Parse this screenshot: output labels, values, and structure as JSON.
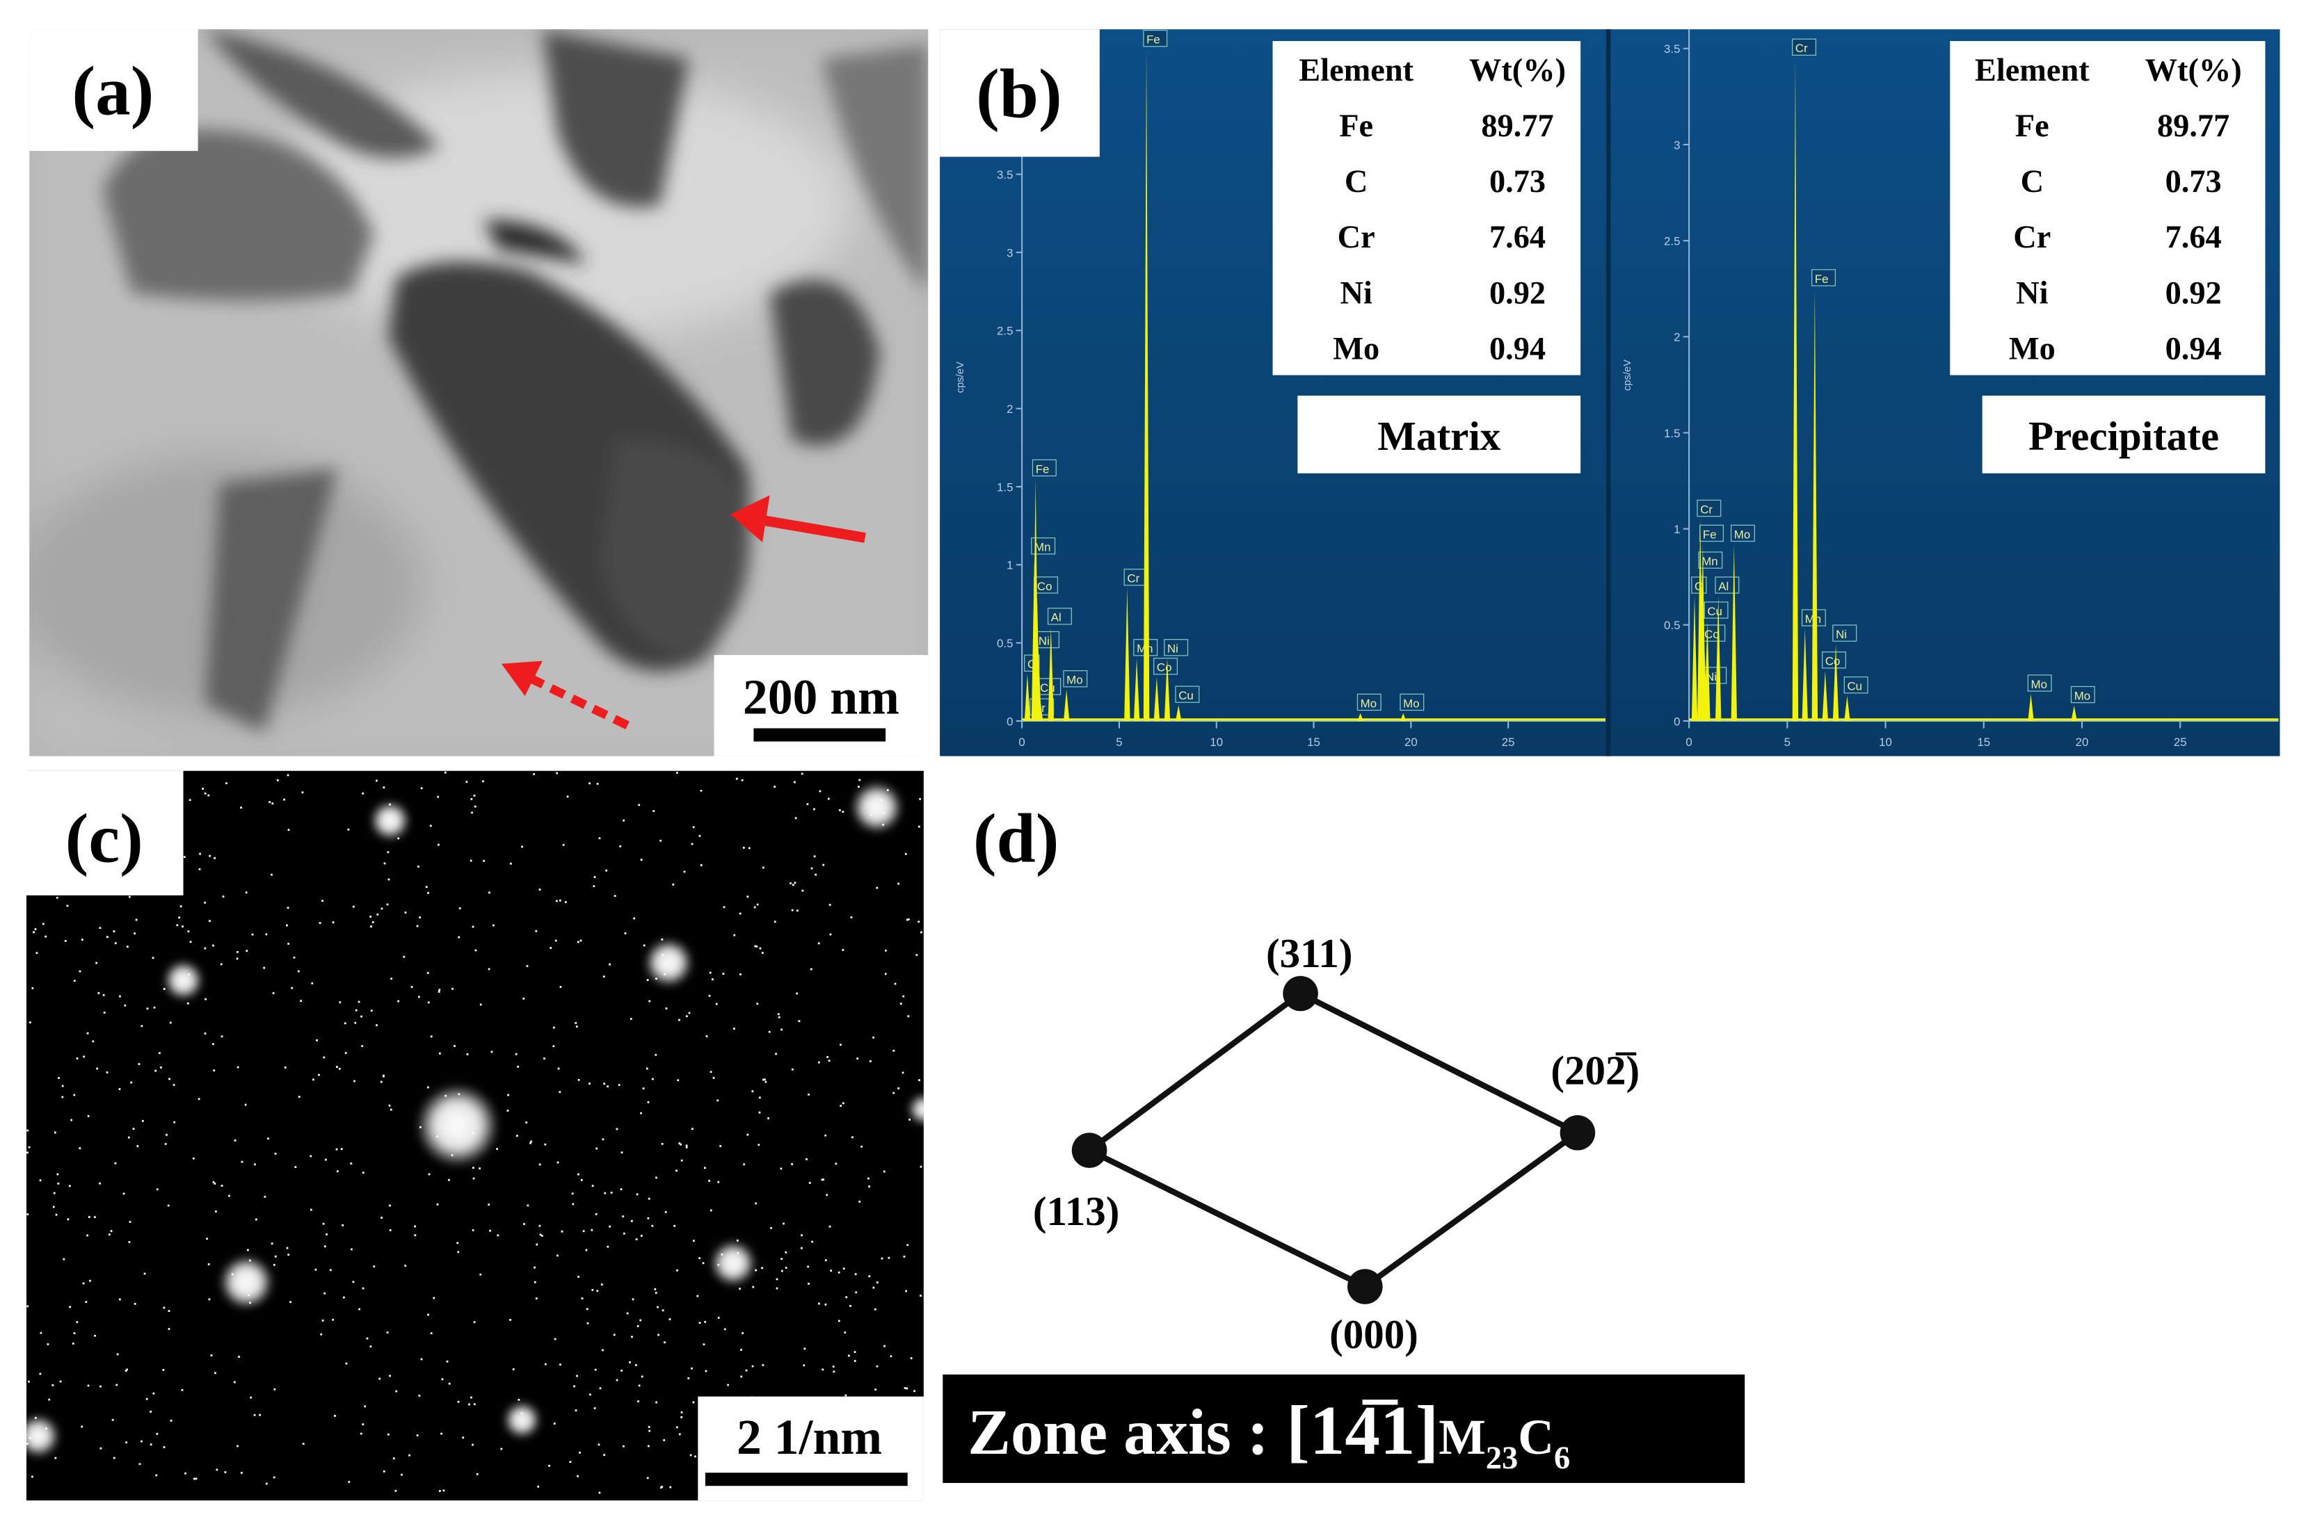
{
  "panels": {
    "a": {
      "label": "(a)",
      "scale_bar": "200 nm"
    },
    "b": {
      "label": "(b)",
      "spectra": [
        {
          "type": "spectrum",
          "name": "Matrix",
          "y_label": "cps/eV",
          "color": "#f2f20a",
          "xlim": [
            0,
            30
          ],
          "ylim": [
            0,
            4.4
          ],
          "xticks": [
            0,
            5,
            10,
            15,
            20,
            25
          ],
          "yticks": [
            0,
            0.5,
            1,
            1.5,
            2,
            2.5,
            3,
            3.5
          ],
          "peaks": [
            {
              "label": "Cr",
              "x": 0.57,
              "y": 0.02
            },
            {
              "label": "C",
              "x": 0.28,
              "y": 0.3
            },
            {
              "label": "Cu",
              "x": 0.93,
              "y": 0.15
            },
            {
              "label": "Ni",
              "x": 0.85,
              "y": 0.45
            },
            {
              "label": "Al",
              "x": 1.49,
              "y": 0.6
            },
            {
              "label": "Co",
              "x": 0.78,
              "y": 0.8
            },
            {
              "label": "Mn",
              "x": 0.64,
              "y": 1.05
            },
            {
              "label": "Fe",
              "x": 0.7,
              "y": 1.55
            },
            {
              "label": "Mo",
              "x": 2.29,
              "y": 0.2
            },
            {
              "label": "Cr",
              "x": 5.41,
              "y": 0.85
            },
            {
              "label": "Mn",
              "x": 5.9,
              "y": 0.4
            },
            {
              "label": "Fe",
              "x": 6.4,
              "y": 4.3
            },
            {
              "label": "Co",
              "x": 6.93,
              "y": 0.28
            },
            {
              "label": "Ni",
              "x": 7.47,
              "y": 0.4
            },
            {
              "label": "Cu",
              "x": 8.05,
              "y": 0.1
            },
            {
              "label": "Mo",
              "x": 17.4,
              "y": 0.05
            },
            {
              "label": "Mo",
              "x": 19.6,
              "y": 0.05
            }
          ],
          "table": {
            "header": [
              "Element",
              "Wt(%)"
            ],
            "rows": [
              [
                "Fe",
                "89.77"
              ],
              [
                "C",
                "0.73"
              ],
              [
                "Cr",
                "7.64"
              ],
              [
                "Ni",
                "0.92"
              ],
              [
                "Mo",
                "0.94"
              ]
            ]
          }
        },
        {
          "type": "spectrum",
          "name": "Precipitate",
          "y_label": "cps/eV",
          "color": "#f2f20a",
          "xlim": [
            0,
            30
          ],
          "ylim": [
            0,
            3.6
          ],
          "xticks": [
            0,
            5,
            10,
            15,
            20,
            25
          ],
          "yticks": [
            0,
            0.5,
            1,
            1.5,
            2,
            2.5,
            3,
            3.5
          ],
          "peaks": [
            {
              "label": "Ni",
              "x": 0.85,
              "y": 0.18
            },
            {
              "label": "Co",
              "x": 0.78,
              "y": 0.4
            },
            {
              "label": "Cu",
              "x": 0.93,
              "y": 0.52
            },
            {
              "label": "C",
              "x": 0.28,
              "y": 0.65
            },
            {
              "label": "Al",
              "x": 1.49,
              "y": 0.65
            },
            {
              "label": "Mn",
              "x": 0.64,
              "y": 0.78
            },
            {
              "label": "Fe",
              "x": 0.7,
              "y": 0.92
            },
            {
              "label": "Mo",
              "x": 2.29,
              "y": 0.92
            },
            {
              "label": "Cr",
              "x": 0.57,
              "y": 1.05
            },
            {
              "label": "Cr",
              "x": 5.41,
              "y": 3.45
            },
            {
              "label": "Mn",
              "x": 5.9,
              "y": 0.48
            },
            {
              "label": "Fe",
              "x": 6.4,
              "y": 2.25
            },
            {
              "label": "Co",
              "x": 6.93,
              "y": 0.26
            },
            {
              "label": "Ni",
              "x": 7.47,
              "y": 0.4
            },
            {
              "label": "Cu",
              "x": 8.05,
              "y": 0.13
            },
            {
              "label": "Mo",
              "x": 17.4,
              "y": 0.14
            },
            {
              "label": "Mo",
              "x": 19.6,
              "y": 0.08
            }
          ],
          "table": {
            "header": [
              "Element",
              "Wt(%)"
            ],
            "rows": [
              [
                "Fe",
                "89.77"
              ],
              [
                "C",
                "0.73"
              ],
              [
                "Cr",
                "7.64"
              ],
              [
                "Ni",
                "0.92"
              ],
              [
                "Mo",
                "0.94"
              ]
            ]
          }
        }
      ]
    },
    "c": {
      "label": "(c)",
      "scale_bar": "2 1/nm"
    },
    "d": {
      "label": "(d)",
      "nodes": [
        {
          "label": "(311)"
        },
        {
          "label": "(202̅)"
        },
        {
          "label": "(113)"
        },
        {
          "label": "(000)"
        }
      ],
      "zone_axis": {
        "text": "Zone axis :",
        "indices": "[14̅1]",
        "phase": [
          "M",
          "23",
          "C",
          "6"
        ]
      }
    }
  }
}
